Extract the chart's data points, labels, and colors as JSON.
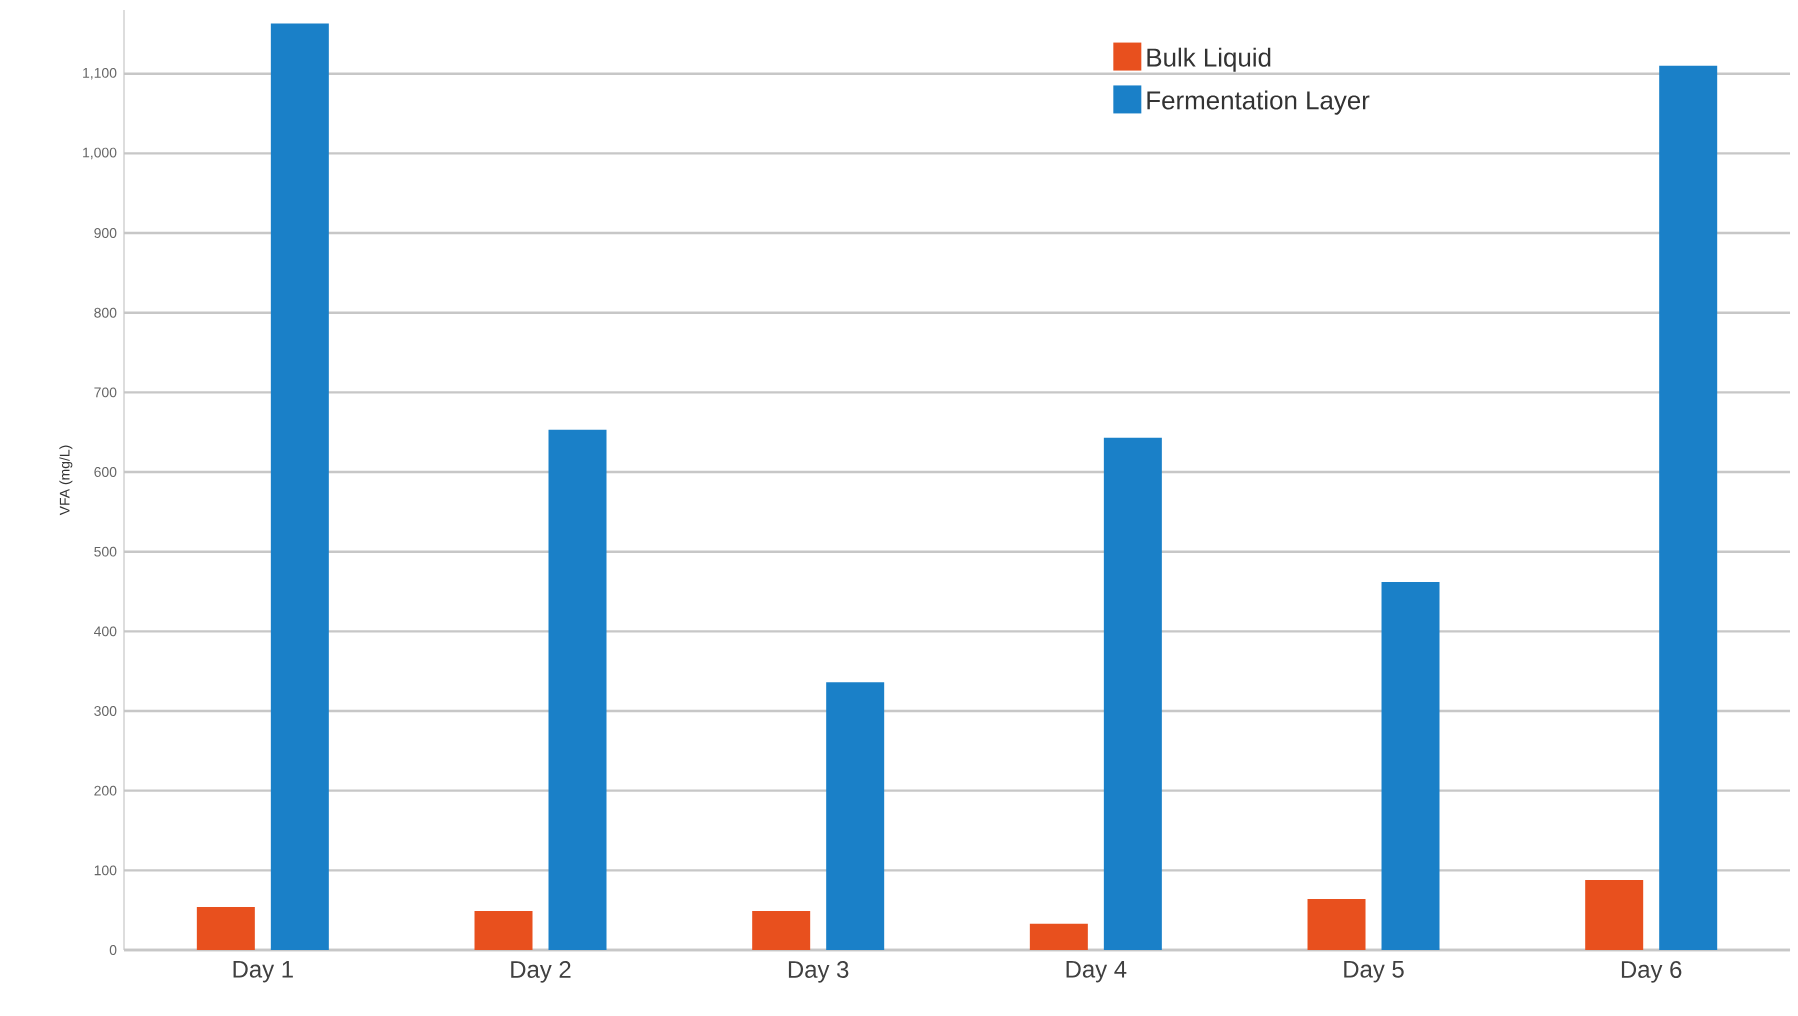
{
  "chart_data": {
    "type": "bar",
    "ylabel": "VFA (mg/L)",
    "categories": [
      "Day 1",
      "Day 2",
      "Day 3",
      "Day 4",
      "Day 5",
      "Day 6"
    ],
    "series": [
      {
        "name": "Bulk Liquid",
        "color": "#e8501e",
        "values": [
          54,
          49,
          49,
          33,
          64,
          88
        ]
      },
      {
        "name": "Fermentation Layer",
        "color": "#1a80c8",
        "values": [
          1163,
          653,
          336,
          643,
          462,
          1110
        ]
      }
    ],
    "ylim": [
      0,
      1180
    ],
    "yticks": [
      0,
      100,
      200,
      300,
      400,
      500,
      600,
      700,
      800,
      900,
      {
        "value": 1000,
        "label": "1,000"
      },
      {
        "value": 1100,
        "label": "1,100"
      }
    ],
    "grid": "y",
    "legend": "top right"
  }
}
